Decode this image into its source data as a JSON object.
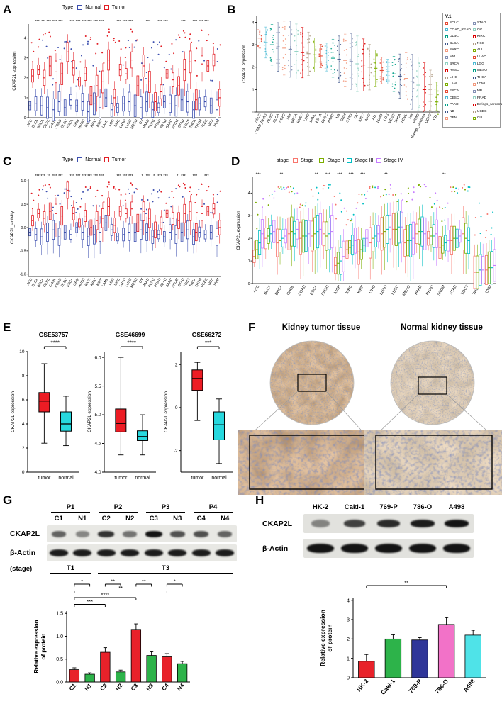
{
  "panelA": {
    "label": "A",
    "legend": {
      "title": "Type",
      "items": [
        {
          "label": "Normal",
          "color": "#3C4FAF"
        },
        {
          "label": "Tumor",
          "color": "#E21E25"
        }
      ]
    },
    "ylabel": "CKAP2L expression",
    "ylim": [
      0,
      4.7
    ],
    "yticks": [
      0,
      1,
      2,
      3,
      4
    ],
    "spread": 0.38,
    "categories": [
      "ACC",
      "BLCA",
      "BRCA",
      "CESC",
      "CHOL",
      "COAD",
      "DLBC",
      "ESCA",
      "GBM",
      "HNSC",
      "KICH",
      "KIRC",
      "KIRP",
      "LAML",
      "LGG",
      "LIHC",
      "LUAD",
      "LUSC",
      "MESO",
      "OV",
      "PAAD",
      "PCPG",
      "PRAD",
      "READ",
      "SARC",
      "SKCM",
      "STAD",
      "TGCT",
      "THCA",
      "THYM",
      "UCEC",
      "UCS",
      "UVM"
    ],
    "sig": [
      "",
      "***",
      "**",
      "***",
      "***",
      "***",
      "",
      "***",
      "***",
      "***",
      "***",
      "***",
      "***",
      "",
      "",
      "***",
      "***",
      "***",
      "",
      "",
      "***",
      "",
      "***",
      "***",
      "",
      "",
      "***",
      "",
      "***",
      "***",
      "***",
      "",
      ""
    ],
    "series": [
      {
        "name": "Normal",
        "color": "#3C4FAF",
        "medians": [
          0.6,
          0.7,
          0.6,
          0.5,
          0.4,
          0.8,
          0.5,
          0.9,
          0.6,
          0.8,
          0.3,
          0.7,
          0.5,
          1.0,
          0.4,
          0.5,
          0.7,
          0.8,
          0.6,
          0.5,
          0.8,
          0.4,
          0.5,
          0.8,
          0.7,
          0.6,
          0.9,
          0.8,
          0.4,
          0.7,
          0.8,
          0.6,
          0.4
        ]
      },
      {
        "name": "Tumor",
        "color": "#E21E25",
        "medians": [
          2.1,
          2.4,
          2.0,
          2.6,
          2.3,
          2.2,
          3.3,
          2.5,
          1.8,
          2.2,
          1.1,
          1.6,
          1.8,
          2.9,
          1.0,
          2.4,
          2.2,
          2.9,
          1.6,
          2.6,
          1.8,
          0.8,
          1.3,
          2.2,
          1.9,
          1.6,
          2.4,
          2.8,
          0.9,
          2.7,
          2.6,
          2.9,
          1.0
        ]
      }
    ]
  },
  "panelB": {
    "label": "B",
    "ylabel": "CKAP2L expression",
    "ylim": [
      0,
      4.3
    ],
    "yticks": [
      0,
      1,
      2,
      3,
      4
    ],
    "legend_title": "V.1",
    "categories": [
      "SCLC",
      "COAD_READ",
      "DLBC",
      "BLCA",
      "SARC",
      "MM",
      "BRCA",
      "HNSC",
      "LIHC",
      "LAML",
      "ESCA",
      "CESC",
      "PAAD",
      "NB",
      "GBM",
      "STAD",
      "OV",
      "KIRC",
      "NSC",
      "ALL",
      "LUAD",
      "LGG",
      "MESO",
      "THCA",
      "LCML",
      "MB",
      "PRAD",
      "Ewings_sarcoma",
      "UCEC",
      "CLL"
    ],
    "means": [
      3.3,
      3.1,
      3.0,
      2.9,
      2.85,
      2.8,
      2.7,
      2.65,
      2.6,
      2.55,
      2.5,
      2.45,
      2.4,
      2.35,
      2.3,
      2.25,
      2.15,
      2.1,
      2.0,
      1.95,
      1.85,
      1.8,
      1.7,
      1.6,
      1.5,
      1.35,
      1.2,
      1.0,
      0.8,
      0.45
    ],
    "colors": [
      "#E64B35",
      "#4DBBD5",
      "#00A087",
      "#3C5488",
      "#F39B7F",
      "#8491B4",
      "#91D1C2",
      "#DC0000",
      "#B09C85",
      "#7CAE00",
      "#E64B35",
      "#4DBBD5",
      "#00A087",
      "#3C5488",
      "#F39B7F",
      "#8491B4",
      "#91D1C2",
      "#DC0000",
      "#B09C85",
      "#7CAE00",
      "#E64B35",
      "#4DBBD5",
      "#00A087",
      "#3C5488",
      "#F39B7F",
      "#8491B4",
      "#91D1C2",
      "#DC0000",
      "#B09C85",
      "#7CAE00"
    ]
  },
  "panelC": {
    "label": "C",
    "legend": {
      "title": "Type",
      "items": [
        {
          "label": "Normal",
          "color": "#3C4FAF"
        },
        {
          "label": "Tumor",
          "color": "#E21E25"
        }
      ]
    },
    "ylabel": "CKAP2L_activity",
    "ylim": [
      -1.05,
      1.05
    ],
    "yticks": [
      -1.0,
      -0.5,
      0.0,
      0.5,
      1.0
    ],
    "yticklabels": [
      "-1.0",
      "-0.5",
      "0.0",
      "0.5",
      "1.0"
    ],
    "spread": 0.14,
    "categories": [
      "ACC",
      "BLCA",
      "BRCA",
      "CESC",
      "CHOL",
      "COAD",
      "DLBC",
      "ESCA",
      "GBM",
      "HNSC",
      "KICH",
      "KIRC",
      "KIRP",
      "LAML",
      "LGG",
      "LIHC",
      "LUAD",
      "LUSC",
      "MESO",
      "OV",
      "PAAD",
      "PCPG",
      "PRAD",
      "READ",
      "SARC",
      "SKCM",
      "STAD",
      "TGCT",
      "THCA",
      "THYM",
      "UCEC",
      "UCS",
      "UVM"
    ],
    "sig": [
      "",
      "***",
      "***",
      "**",
      "***",
      "***",
      "",
      "***",
      "***",
      "***",
      "***",
      "***",
      "***",
      "",
      "",
      "***",
      "***",
      "***",
      "",
      "*",
      "***",
      "*",
      "***",
      "***",
      "",
      "*",
      "***",
      "",
      "***",
      "",
      "***",
      "",
      ""
    ],
    "series": [
      {
        "name": "Normal",
        "color": "#3C4FAF",
        "medians": [
          -0.1,
          -0.15,
          -0.2,
          -0.1,
          -0.05,
          -0.2,
          -0.1,
          -0.15,
          0.0,
          -0.1,
          -0.2,
          -0.15,
          -0.1,
          0.1,
          -0.05,
          -0.2,
          -0.15,
          -0.1,
          -0.1,
          -0.05,
          -0.1,
          -0.2,
          -0.15,
          -0.2,
          -0.1,
          -0.15,
          -0.1,
          -0.05,
          -0.2,
          -0.1,
          -0.15,
          -0.1,
          -0.2
        ]
      },
      {
        "name": "Tumor",
        "color": "#E21E25",
        "medians": [
          0.15,
          0.3,
          0.2,
          0.35,
          0.3,
          0.25,
          0.8,
          0.3,
          0.1,
          0.25,
          0.0,
          0.15,
          0.2,
          0.45,
          0.05,
          0.35,
          0.3,
          0.4,
          0.1,
          0.35,
          0.2,
          -0.05,
          0.1,
          0.3,
          0.2,
          0.15,
          0.3,
          0.35,
          -0.1,
          0.3,
          0.35,
          0.4,
          0.0
        ]
      }
    ]
  },
  "panelD": {
    "label": "D",
    "legend": {
      "title": "stage",
      "items": [
        {
          "label": "Stage I",
          "color": "#F8766D"
        },
        {
          "label": "Stage II",
          "color": "#7CAE00"
        },
        {
          "label": "Stage III",
          "color": "#00BFC4"
        },
        {
          "label": "Stage IV",
          "color": "#C77CFF"
        }
      ]
    },
    "ylabel": "CKAP2L expression",
    "ylim": [
      0,
      4.7
    ],
    "yticks": [
      0,
      1,
      2,
      3,
      4
    ],
    "spread": 0.5,
    "categories": [
      "ACC",
      "BLCA",
      "BRCA",
      "CHOL",
      "COAD",
      "ESCA",
      "HNSC",
      "KICH",
      "KIRC",
      "KIRP",
      "LIHC",
      "LUAD",
      "LUSC",
      "MESO",
      "PAAD",
      "READ",
      "SKCM",
      "STAD",
      "TGCT",
      "THCA",
      "UVM"
    ],
    "sig": [
      "***",
      "",
      "**",
      "",
      "",
      "**",
      "***",
      "***",
      "***",
      "***",
      "",
      "**",
      "",
      "",
      "",
      "",
      "**",
      "",
      "",
      "",
      ""
    ],
    "series": [
      {
        "name": "Stage I",
        "color": "#F8766D",
        "medians": [
          1.2,
          2.0,
          1.8,
          2.2,
          2.0,
          2.1,
          2.2,
          0.8,
          1.5,
          1.4,
          1.8,
          2.2,
          2.4,
          1.8,
          2.2,
          2.0,
          1.6,
          1.9,
          2.2,
          0.5,
          0.6
        ]
      },
      {
        "name": "Stage II",
        "color": "#7CAE00",
        "medians": [
          1.5,
          2.1,
          1.9,
          2.3,
          2.1,
          2.2,
          2.1,
          0.9,
          1.6,
          1.5,
          2.0,
          2.3,
          2.4,
          1.9,
          2.3,
          2.1,
          1.7,
          2.0,
          2.0,
          0.5,
          0.7
        ]
      },
      {
        "name": "Stage III",
        "color": "#00BFC4",
        "medians": [
          1.8,
          2.2,
          2.0,
          2.2,
          2.1,
          2.3,
          2.2,
          1.0,
          1.7,
          1.7,
          2.1,
          2.4,
          2.5,
          1.9,
          2.3,
          2.1,
          1.8,
          2.0,
          1.9,
          0.6,
          0.7
        ]
      },
      {
        "name": "Stage IV",
        "color": "#C77CFF",
        "medians": [
          2.2,
          2.3,
          2.1,
          2.4,
          2.2,
          2.4,
          2.3,
          1.2,
          1.9,
          2.0,
          2.2,
          2.5,
          2.5,
          2.0,
          2.2,
          2.2,
          1.9,
          2.1,
          null,
          0.6,
          0.8
        ]
      }
    ]
  },
  "panelE": {
    "label": "E",
    "plots": [
      {
        "title": "GSE53757",
        "sig": "****",
        "ylabel": "CKAP2L expression",
        "ylim": [
          0,
          10
        ],
        "yticks": [
          0,
          2,
          4,
          6,
          8,
          10
        ],
        "yticklabels": [
          "0",
          "2",
          "4",
          "6",
          "8",
          "10"
        ],
        "groups": [
          {
            "label": "tumor",
            "color": "#ED1C24",
            "stats": [
              2.4,
              5.0,
              5.9,
              6.6,
              9.0
            ]
          },
          {
            "label": "normal",
            "color": "#27D8DE",
            "stats": [
              2.2,
              3.4,
              4.0,
              5.0,
              6.3
            ]
          }
        ]
      },
      {
        "title": "GSE46699",
        "sig": "****",
        "ylabel": "CKAP2L expression",
        "ylim": [
          4.0,
          6.1
        ],
        "yticks": [
          4.0,
          4.5,
          5.0,
          5.5,
          6.0
        ],
        "yticklabels": [
          "4.0",
          "4.5",
          "5.0",
          "5.5",
          "6.0"
        ],
        "groups": [
          {
            "label": "tumor",
            "color": "#ED1C24",
            "stats": [
              4.3,
              4.7,
              4.85,
              5.1,
              6.0
            ]
          },
          {
            "label": "normal",
            "color": "#27D8DE",
            "stats": [
              4.3,
              4.55,
              4.62,
              4.72,
              5.0
            ]
          }
        ]
      },
      {
        "title": "GSE66272",
        "sig": "***",
        "ylabel": "CKAP2L expression",
        "ylim": [
          -3,
          2.6
        ],
        "yticks": [
          -2,
          0,
          2
        ],
        "yticklabels": [
          "-2",
          "0",
          "2"
        ],
        "groups": [
          {
            "label": "tumor",
            "color": "#ED1C24",
            "stats": [
              -0.6,
              0.8,
              1.35,
              1.75,
              2.1
            ]
          },
          {
            "label": "normal",
            "color": "#27D8DE",
            "stats": [
              -2.6,
              -1.5,
              -0.8,
              -0.2,
              0.4
            ]
          }
        ]
      }
    ]
  },
  "panelF": {
    "label": "F",
    "titles": [
      "Kidney tumor tissue",
      "Normal kidney tissue"
    ]
  },
  "panelG": {
    "label": "G",
    "blot": {
      "patients": [
        "P1",
        "P2",
        "P3",
        "P4"
      ],
      "lanes": [
        "C1",
        "N1",
        "C2",
        "N2",
        "C3",
        "N3",
        "C4",
        "N4"
      ],
      "rows": [
        "CKAP2L",
        "β-Actin"
      ],
      "stage_label": "(stage)",
      "stages": [
        {
          "label": "T1",
          "lanes": 2
        },
        {
          "label": "T3",
          "lanes": 6
        }
      ],
      "ckap2l_bands": [
        0.5,
        0.28,
        0.8,
        0.4,
        1.0,
        0.6,
        0.62,
        0.5
      ],
      "actin_bands": [
        0.95,
        0.95,
        0.95,
        0.95,
        0.95,
        0.95,
        0.95,
        0.95
      ]
    },
    "chart": {
      "categories": [
        "C1",
        "N1",
        "C2",
        "N2",
        "C3",
        "N3",
        "C4",
        "N4"
      ],
      "values": [
        0.27,
        0.17,
        0.65,
        0.22,
        1.15,
        0.58,
        0.55,
        0.4
      ],
      "errors": [
        0.04,
        0.03,
        0.1,
        0.04,
        0.12,
        0.08,
        0.07,
        0.05
      ],
      "colors": [
        "#E8222A",
        "#2DB34A",
        "#E8222A",
        "#2DB34A",
        "#E8222A",
        "#2DB34A",
        "#E8222A",
        "#2DB34A"
      ],
      "ylim": [
        0,
        1.55
      ],
      "yticks": [
        0,
        0.5,
        1.0,
        1.5
      ],
      "yticklabels": [
        "0.0",
        "0.5",
        "1.0",
        "1.5"
      ],
      "ylabel_lines": [
        "Relative expression",
        "of protein"
      ],
      "brackets": [
        {
          "a": 0,
          "b": 1,
          "label": "*",
          "lvl": 4
        },
        {
          "a": 2,
          "b": 3,
          "label": "**",
          "lvl": 4
        },
        {
          "a": 4,
          "b": 5,
          "label": "**",
          "lvl": 4
        },
        {
          "a": 6,
          "b": 7,
          "label": "*",
          "lvl": 4
        },
        {
          "a": 0,
          "b": 6,
          "label": "**",
          "lvl": 3
        },
        {
          "a": 0,
          "b": 4,
          "label": "****",
          "lvl": 2
        },
        {
          "a": 0,
          "b": 2,
          "label": "***",
          "lvl": 1
        }
      ]
    }
  },
  "panelH": {
    "label": "H",
    "blot": {
      "lanes": [
        "HK-2",
        "Caki-1",
        "769-P",
        "786-O",
        "A498"
      ],
      "rows": [
        "CKAP2L",
        "β-Actin"
      ],
      "ckap2l_bands": [
        0.28,
        0.7,
        0.85,
        0.95,
        1.0
      ],
      "actin_bands": [
        1,
        1,
        1,
        1,
        1
      ]
    },
    "chart": {
      "categories": [
        "HK-2",
        "Caki-1",
        "769-P",
        "786-O",
        "A498"
      ],
      "values": [
        0.85,
        2.0,
        1.95,
        2.75,
        2.2
      ],
      "errors": [
        0.35,
        0.22,
        0.12,
        0.35,
        0.25
      ],
      "colors": [
        "#E8222A",
        "#2DB34A",
        "#2F3699",
        "#F272C8",
        "#4FE3E8"
      ],
      "ylim": [
        0,
        4.1
      ],
      "yticks": [
        0,
        1,
        2,
        3,
        4
      ],
      "yticklabels": [
        "0",
        "1",
        "2",
        "3",
        "4"
      ],
      "ylabel_lines": [
        "Relative expression",
        "of protein"
      ],
      "brackets": [
        {
          "a": 0,
          "b": 3,
          "label": "**",
          "lvl": 0
        }
      ]
    }
  }
}
